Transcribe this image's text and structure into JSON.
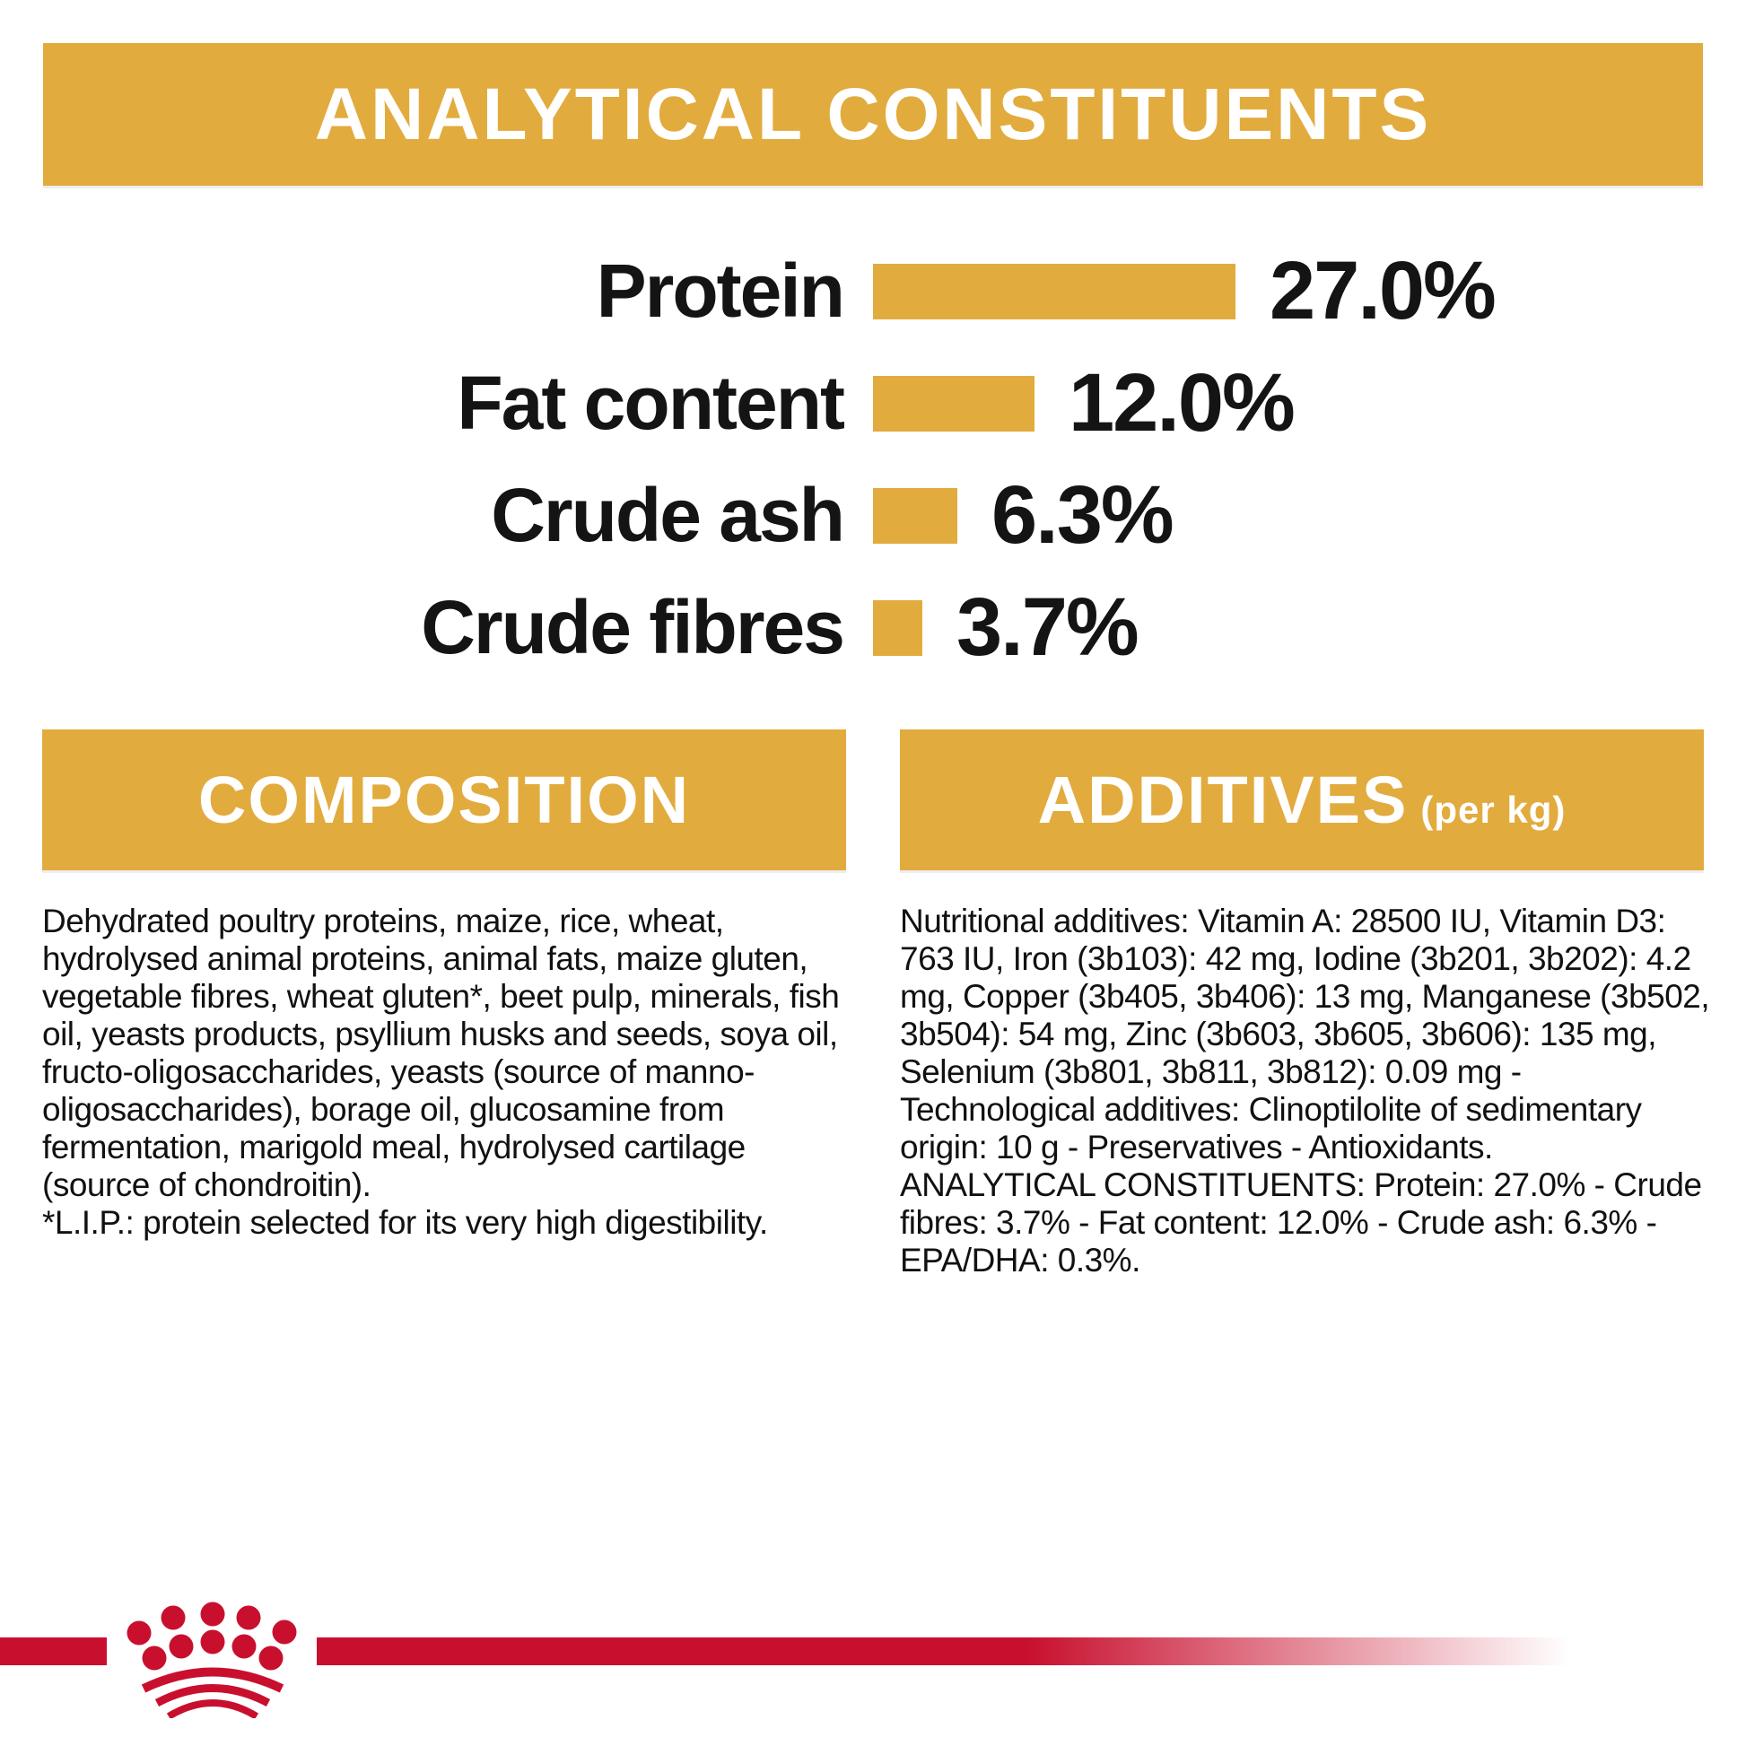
{
  "colors": {
    "gold": "#e2ab3e",
    "red": "#c8102e",
    "text": "#111111",
    "banner_text": "#ffffff"
  },
  "analytical_banner": {
    "title": "ANALYTICAL CONSTITUENTS"
  },
  "chart_data": {
    "type": "bar",
    "orientation": "horizontal",
    "title": "ANALYTICAL CONSTITUENTS",
    "categories": [
      "Protein",
      "Fat content",
      "Crude ash",
      "Crude fibres"
    ],
    "values": [
      27.0,
      12.0,
      6.3,
      3.7
    ],
    "value_labels": [
      "27.0%",
      "12.0%",
      "6.3%",
      "3.7%"
    ],
    "unit": "%",
    "xlim": [
      0,
      27
    ],
    "bar_color": "#e2ab3e",
    "grid": false,
    "legend": false
  },
  "composition": {
    "title": "COMPOSITION",
    "paragraphs": [
      "Dehydrated poultry proteins, maize, rice, wheat, hydrolysed animal proteins, animal fats, maize gluten, vegetable fibres, wheat gluten*, beet pulp, minerals, fish oil, yeasts products, psyllium husks and seeds, soya oil, fructo-oligosaccharides, yeasts (source of manno-oligosaccharides), borage oil, glucosamine from fermentation, marigold meal, hydrolysed cartilage (source of chondroitin).",
      "*L.I.P.: protein selected for its very high digestibility."
    ]
  },
  "additives": {
    "title": "ADDITIVES",
    "title_suffix": "(per kg)",
    "paragraphs": [
      "Nutritional additives: Vitamin A: 28500 IU, Vitamin D3: 763 IU, Iron (3b103): 42 mg, Iodine (3b201, 3b202): 4.2 mg, Copper (3b405, 3b406): 13 mg, Manganese (3b502, 3b504): 54 mg, Zinc (3b603, 3b605, 3b606): 135 mg, Selenium (3b801, 3b811, 3b812): 0.09 mg - Technological additives: Clinoptilolite of sedimentary origin: 10 g - Preservatives - Antioxidants.",
      "ANALYTICAL CONSTITUENTS: Protein: 27.0% - Crude fibres: 3.7% - Fat content: 12.0% - Crude ash: 6.3% - EPA/DHA: 0.3%."
    ]
  },
  "footer": {
    "logo": "royal-canin-crown",
    "stripe_color": "#c8102e"
  }
}
